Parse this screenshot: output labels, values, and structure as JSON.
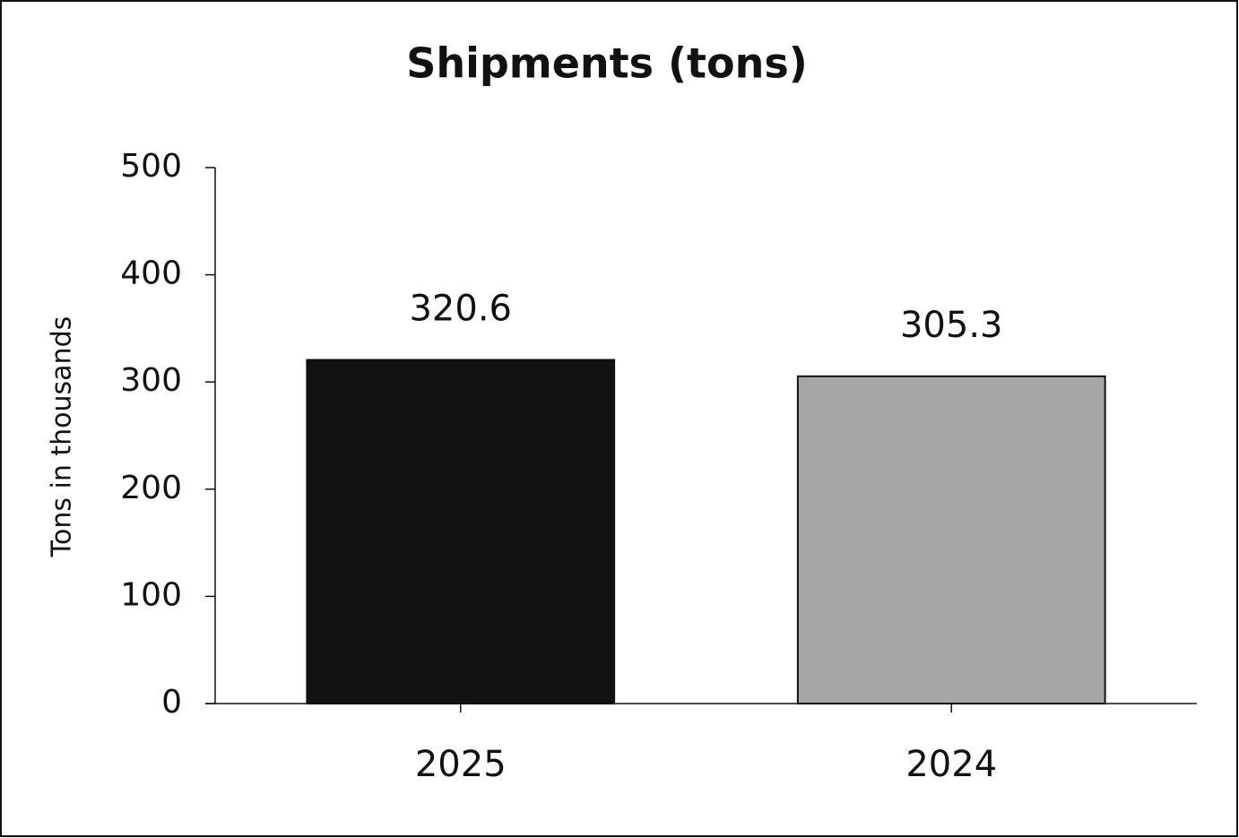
{
  "chart_data": {
    "type": "bar",
    "title": "Shipments (tons)",
    "y_label": "Tons in thousands",
    "categories": [
      "2025",
      "2024"
    ],
    "values": [
      320.6,
      305.3
    ],
    "colors": [
      "#111111",
      "#a6a6a6"
    ],
    "ylim": [
      0,
      500
    ],
    "yticks": [
      0,
      100,
      200,
      300,
      400,
      500
    ],
    "grid": false
  }
}
